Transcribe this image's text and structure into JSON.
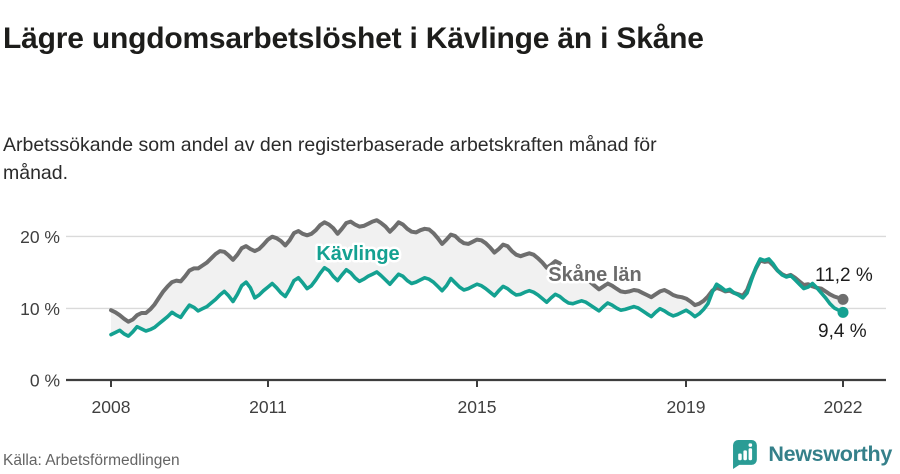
{
  "header": {
    "title": "Lägre ungdomsarbetslöshet i Kävlinge än i Skåne",
    "subtitle": "Arbetssökande som andel av den registerbaserade arbetskraften månad för månad."
  },
  "colors": {
    "kavlinge": "#14a191",
    "skane": "#6e6e6e",
    "band": "#f1f1f1",
    "gridline": "#dadada",
    "axis": "#3d3d3d",
    "brand_bubble": "#2a9c95",
    "brand_text": "#35808a"
  },
  "chart_data": {
    "type": "line",
    "unit": "%",
    "x_range": [
      "2008-01",
      "2022-01"
    ],
    "points_per_year": 12,
    "ylim": [
      0,
      24
    ],
    "grid": "horizontal",
    "legend_position": "inline-labels",
    "y_ticks": [
      {
        "value": 0,
        "label": "0 %"
      },
      {
        "value": 10,
        "label": "10 %"
      },
      {
        "value": 20,
        "label": "20 %"
      }
    ],
    "x_ticks": [
      {
        "year": 2008,
        "label": "2008"
      },
      {
        "year": 2011,
        "label": "2011"
      },
      {
        "year": 2015,
        "label": "2015"
      },
      {
        "year": 2019,
        "label": "2019"
      },
      {
        "year": 2022,
        "label": "2022"
      }
    ],
    "series": [
      {
        "name": "Kävlinge",
        "color": "#14a191",
        "end_label": "9,4 %",
        "end_value": 9.4,
        "values": [
          6.3,
          6.6,
          6.9,
          6.4,
          6.1,
          6.7,
          7.4,
          7.1,
          6.8,
          7.0,
          7.3,
          7.8,
          8.3,
          8.8,
          9.4,
          9.0,
          8.7,
          9.6,
          10.4,
          10.1,
          9.6,
          9.9,
          10.2,
          10.7,
          11.2,
          11.8,
          12.3,
          11.7,
          10.9,
          11.9,
          13.1,
          13.6,
          12.8,
          11.4,
          11.8,
          12.4,
          12.9,
          13.4,
          12.8,
          12.1,
          11.6,
          12.6,
          13.8,
          14.2,
          13.5,
          12.7,
          13.1,
          13.9,
          14.8,
          15.6,
          15.2,
          14.4,
          13.8,
          14.6,
          15.3,
          14.9,
          14.2,
          13.7,
          14.0,
          14.4,
          14.7,
          15.0,
          14.5,
          13.9,
          13.3,
          14.0,
          14.7,
          14.4,
          13.8,
          13.4,
          13.6,
          13.9,
          14.2,
          14.0,
          13.6,
          13.0,
          12.4,
          13.1,
          14.1,
          13.5,
          12.9,
          12.5,
          12.7,
          13.0,
          13.3,
          13.1,
          12.7,
          12.2,
          11.7,
          12.4,
          13.0,
          12.7,
          12.2,
          11.8,
          11.9,
          12.2,
          12.4,
          12.2,
          11.8,
          11.3,
          10.8,
          11.4,
          11.9,
          11.6,
          11.1,
          10.7,
          10.6,
          10.8,
          11.0,
          10.8,
          10.4,
          10.0,
          9.6,
          10.2,
          10.7,
          10.4,
          10.0,
          9.7,
          9.8,
          10.0,
          10.2,
          10.0,
          9.6,
          9.2,
          8.8,
          9.4,
          9.9,
          9.6,
          9.2,
          8.9,
          9.1,
          9.4,
          9.7,
          9.3,
          8.8,
          9.2,
          9.8,
          10.6,
          12.2,
          13.3,
          12.9,
          12.4,
          12.6,
          12.1,
          11.8,
          11.4,
          12.1,
          13.9,
          15.6,
          16.8,
          16.6,
          16.8,
          16.1,
          15.2,
          14.6,
          14.3,
          14.5,
          13.9,
          13.3,
          12.7,
          12.9,
          13.4,
          12.8,
          12.1,
          11.4,
          10.6,
          10.0,
          9.7,
          9.4
        ]
      },
      {
        "name": "Skåne län",
        "color": "#6e6e6e",
        "end_label": "11,2 %",
        "end_value": 11.2,
        "values": [
          9.7,
          9.4,
          9.0,
          8.5,
          8.1,
          8.4,
          9.0,
          9.3,
          9.3,
          9.8,
          10.5,
          11.4,
          12.3,
          13.0,
          13.6,
          13.8,
          13.7,
          14.4,
          15.2,
          15.5,
          15.5,
          15.9,
          16.3,
          16.9,
          17.5,
          17.9,
          17.8,
          17.3,
          16.7,
          17.4,
          18.3,
          18.6,
          18.2,
          17.9,
          18.2,
          18.8,
          19.5,
          19.9,
          19.7,
          19.3,
          18.7,
          19.4,
          20.4,
          20.7,
          20.3,
          20.1,
          20.3,
          20.8,
          21.5,
          21.9,
          21.6,
          21.1,
          20.3,
          21.0,
          21.8,
          22.0,
          21.6,
          21.3,
          21.4,
          21.7,
          22.0,
          22.2,
          21.8,
          21.3,
          20.6,
          21.2,
          21.9,
          21.6,
          21.0,
          20.6,
          20.5,
          20.8,
          21.0,
          20.9,
          20.4,
          19.7,
          18.9,
          19.5,
          20.2,
          20.0,
          19.4,
          19.0,
          18.9,
          19.2,
          19.5,
          19.4,
          19.0,
          18.4,
          17.7,
          18.2,
          18.8,
          18.6,
          17.9,
          17.4,
          17.2,
          17.4,
          17.6,
          17.4,
          16.9,
          16.3,
          15.6,
          16.0,
          16.5,
          16.2,
          15.5,
          14.8,
          14.4,
          14.3,
          14.2,
          14.0,
          13.6,
          13.1,
          12.6,
          13.0,
          13.4,
          13.1,
          12.7,
          12.3,
          12.2,
          12.3,
          12.5,
          12.4,
          12.1,
          11.8,
          11.5,
          11.9,
          12.3,
          12.5,
          12.2,
          11.8,
          11.6,
          11.5,
          11.3,
          10.9,
          10.4,
          10.6,
          11.0,
          11.6,
          12.4,
          12.8,
          12.6,
          12.3,
          12.4,
          12.1,
          11.9,
          11.7,
          12.5,
          14.1,
          15.5,
          16.6,
          16.4,
          16.5,
          15.9,
          15.2,
          14.7,
          14.4,
          14.6,
          14.2,
          13.7,
          13.2,
          13.3,
          13.0,
          12.8,
          12.7,
          12.3,
          11.9,
          11.6,
          11.4,
          11.2
        ]
      }
    ]
  },
  "footer": {
    "source": "Källa: Arbetsförmedlingen",
    "brand": "Newsworthy"
  }
}
